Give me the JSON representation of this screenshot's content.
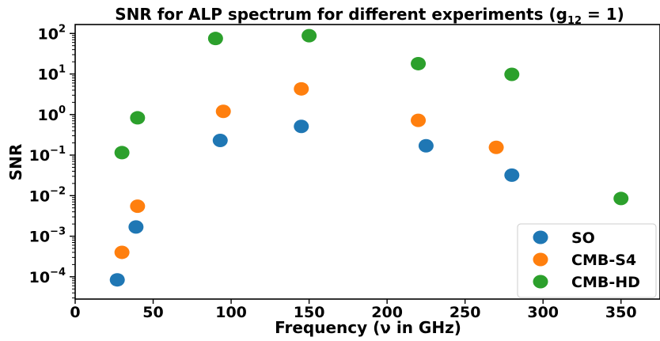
{
  "chart_data": {
    "type": "scatter",
    "title": {
      "main": "SNR for ALP spectrum for different experiments (",
      "g": "g",
      "sub": "12",
      "eq": " = 1)"
    },
    "xlabel": "Frequency (ν in GHz)",
    "ylabel": "SNR",
    "xlim": [
      0,
      375
    ],
    "ylim_log10": [
      -4.55,
      2.22
    ],
    "y_scale": "log",
    "grid": false,
    "legend_position": "lower-right",
    "x_ticks": [
      0,
      50,
      100,
      150,
      200,
      250,
      300,
      350
    ],
    "x_tick_labels": [
      "0",
      "50",
      "100",
      "150",
      "200",
      "250",
      "300",
      "350"
    ],
    "y_ticks_exp": [
      -4,
      -3,
      -2,
      -1,
      0,
      1,
      2
    ],
    "y_tick_labels": [
      {
        "base": "10",
        "exp": "−4"
      },
      {
        "base": "10",
        "exp": "−3"
      },
      {
        "base": "10",
        "exp": "−2"
      },
      {
        "base": "10",
        "exp": "−1"
      },
      {
        "base": "10",
        "exp": "0"
      },
      {
        "base": "10",
        "exp": "1"
      },
      {
        "base": "10",
        "exp": "2"
      }
    ],
    "series": [
      {
        "name": "SO",
        "color": "#1f77b4",
        "points": [
          {
            "x": 27,
            "y": 8.4e-05
          },
          {
            "x": 39,
            "y": 0.00169
          },
          {
            "x": 93,
            "y": 0.23
          },
          {
            "x": 145,
            "y": 0.51
          },
          {
            "x": 225,
            "y": 0.17
          },
          {
            "x": 280,
            "y": 0.032
          }
        ]
      },
      {
        "name": "CMB-S4",
        "color": "#ff7f0e",
        "points": [
          {
            "x": 30,
            "y": 0.0004
          },
          {
            "x": 40,
            "y": 0.0055
          },
          {
            "x": 95,
            "y": 1.2
          },
          {
            "x": 145,
            "y": 4.3
          },
          {
            "x": 220,
            "y": 0.72
          },
          {
            "x": 270,
            "y": 0.155
          }
        ]
      },
      {
        "name": "CMB-HD",
        "color": "#2ca02c",
        "points": [
          {
            "x": 30,
            "y": 0.115
          },
          {
            "x": 40,
            "y": 0.83
          },
          {
            "x": 90,
            "y": 75
          },
          {
            "x": 150,
            "y": 88
          },
          {
            "x": 220,
            "y": 18
          },
          {
            "x": 280,
            "y": 9.8
          },
          {
            "x": 350,
            "y": 0.0085
          }
        ]
      }
    ]
  }
}
